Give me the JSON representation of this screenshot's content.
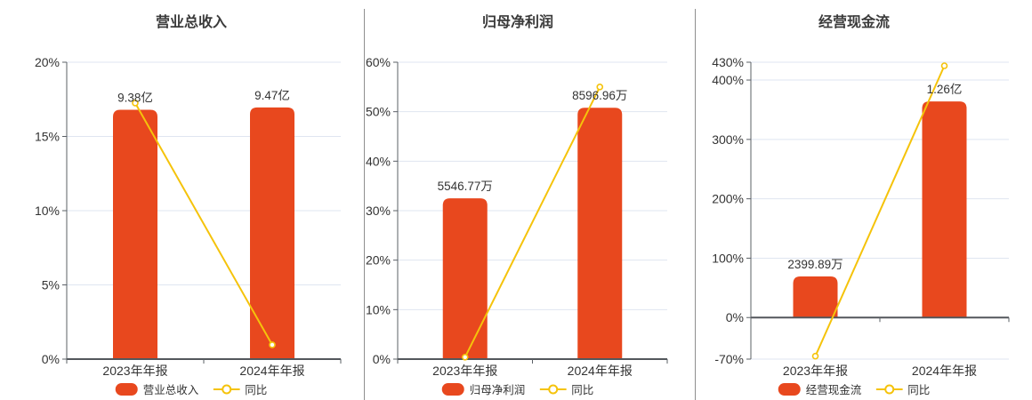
{
  "chart_data": [
    {
      "type": "combo_bar_line",
      "title": "营业总收入",
      "categories": [
        "2023年年报",
        "2024年年报"
      ],
      "bar_series": {
        "name": "营业总收入",
        "value_labels": [
          "9.38亿",
          "9.47亿"
        ],
        "plotted_axis_values": [
          16.8,
          16.95
        ]
      },
      "line_series": {
        "name": "同比",
        "values_pct": [
          17.25,
          0.96
        ]
      },
      "y_axis": {
        "range": [
          0,
          20
        ],
        "ticks": [
          0,
          5,
          10,
          15,
          20
        ],
        "tick_labels": [
          "0%",
          "5%",
          "10%",
          "15%",
          "20%"
        ]
      },
      "legend": [
        "营业总收入",
        "同比"
      ],
      "legend_position": "bottom",
      "grid": true
    },
    {
      "type": "combo_bar_line",
      "title": "归母净利润",
      "categories": [
        "2023年年报",
        "2024年年报"
      ],
      "bar_series": {
        "name": "归母净利润",
        "value_labels": [
          "5546.77万",
          "8596.96万"
        ],
        "plotted_axis_values": [
          32.5,
          50.8
        ]
      },
      "line_series": {
        "name": "同比",
        "values_pct": [
          0.4,
          55.0
        ]
      },
      "y_axis": {
        "range": [
          0,
          60
        ],
        "ticks": [
          0,
          10,
          20,
          30,
          40,
          50,
          60
        ],
        "tick_labels": [
          "0%",
          "10%",
          "20%",
          "30%",
          "40%",
          "50%",
          "60%"
        ]
      },
      "legend": [
        "归母净利润",
        "同比"
      ],
      "legend_position": "bottom",
      "grid": true
    },
    {
      "type": "combo_bar_line",
      "title": "经营现金流",
      "categories": [
        "2023年年报",
        "2024年年报"
      ],
      "bar_series": {
        "name": "经营现金流",
        "value_labels": [
          "2399.89万",
          "1.26亿"
        ],
        "plotted_axis_values": [
          69.3,
          364
        ]
      },
      "line_series": {
        "name": "同比",
        "values_pct": [
          -65,
          424
        ]
      },
      "y_axis": {
        "range": [
          -70,
          430
        ],
        "ticks": [
          -70,
          0,
          100,
          200,
          300,
          400,
          430
        ],
        "tick_labels": [
          "-70%",
          "0%",
          "100%",
          "200%",
          "300%",
          "400%",
          "430%"
        ]
      },
      "legend": [
        "经营现金流",
        "同比"
      ],
      "legend_position": "bottom",
      "grid": true
    }
  ],
  "colors": {
    "bar": "#E8481E",
    "line": "#F5C30B",
    "grid": "#DFE5F0",
    "axis": "#5B6066",
    "zero_line": "#53575C",
    "text": "#333333",
    "marker_fill": "#FFFFFF",
    "separator": "#8F8F8F",
    "background": "#FFFFFF"
  }
}
